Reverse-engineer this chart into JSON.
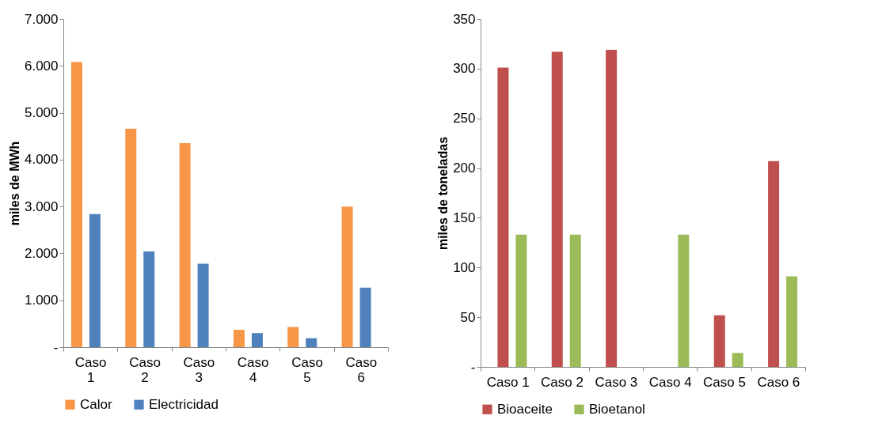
{
  "chart_data": [
    {
      "type": "bar",
      "ylabel": "miles de MWh",
      "categories": [
        "Caso 1",
        "Caso 2",
        "Caso 3",
        "Caso 4",
        "Caso 5",
        "Caso 6"
      ],
      "series": [
        {
          "name": "Calor",
          "color": "#f79646",
          "values": [
            6080,
            4660,
            4350,
            370,
            430,
            3000
          ]
        },
        {
          "name": "Electricidad",
          "color": "#4f81bd",
          "values": [
            2840,
            2040,
            1780,
            300,
            190,
            1270
          ]
        }
      ],
      "ylim": [
        0,
        7000
      ],
      "yticks": [
        {
          "value": 0,
          "label": "-"
        },
        {
          "value": 1000,
          "label": "1.000"
        },
        {
          "value": 2000,
          "label": "2.000"
        },
        {
          "value": 3000,
          "label": "3.000"
        },
        {
          "value": 4000,
          "label": "4.000"
        },
        {
          "value": 5000,
          "label": "5.000"
        },
        {
          "value": 6000,
          "label": "6.000"
        },
        {
          "value": 7000,
          "label": "7.000"
        }
      ],
      "grid": false,
      "legend": "bottom"
    },
    {
      "type": "bar",
      "ylabel": "miles de toneladas",
      "categories": [
        "Caso 1",
        "Caso 2",
        "Caso 3",
        "Caso 4",
        "Caso 5",
        "Caso 6"
      ],
      "series": [
        {
          "name": "Bioaceite",
          "color": "#c0504d",
          "values": [
            301,
            317,
            319,
            null,
            52,
            207
          ]
        },
        {
          "name": "Bioetanol",
          "color": "#9bbb59",
          "values": [
            133,
            133,
            null,
            133,
            14,
            91
          ]
        }
      ],
      "ylim": [
        0,
        350
      ],
      "yticks": [
        {
          "value": 0,
          "label": "-"
        },
        50,
        100,
        150,
        200,
        250,
        300,
        350
      ],
      "grid": false,
      "legend": "bottom"
    }
  ]
}
